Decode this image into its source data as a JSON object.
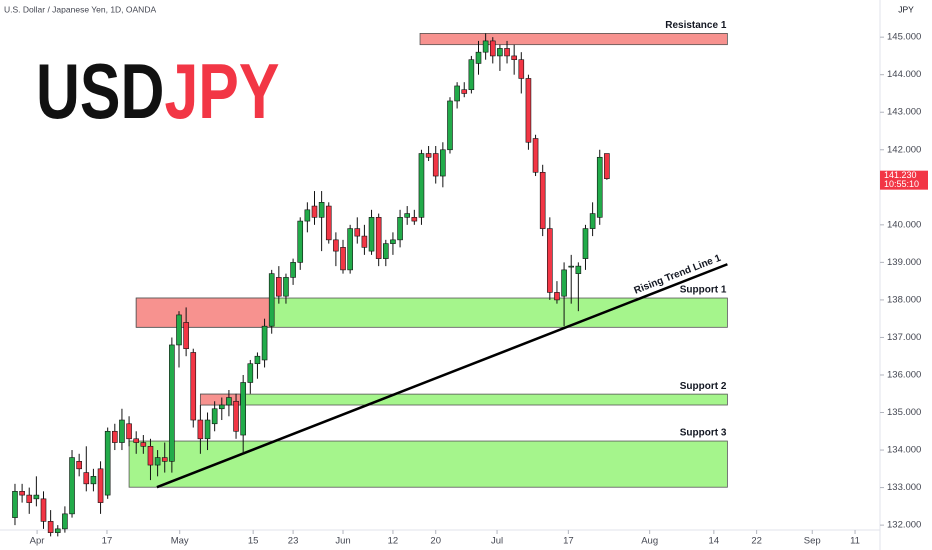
{
  "chart_data": {
    "type": "candlestick",
    "title": "U.S. Dollar / Japanese Yen, 1D, OANDA",
    "logo": [
      "USD",
      "JPY"
    ],
    "currency": "JPY",
    "up_color": "#22ab4a",
    "down_color": "#f23645",
    "ylim": [
      131.87,
      145.99
    ],
    "xlim": [
      -2.1,
      121.3
    ],
    "yticks": [
      {
        "value": 145,
        "label": "145.000"
      },
      {
        "value": 144,
        "label": "144.000"
      },
      {
        "value": 143,
        "label": "143.000"
      },
      {
        "value": 142,
        "label": "142.000"
      },
      {
        "value": 140,
        "label": "140.000"
      },
      {
        "value": 139,
        "label": "139.000"
      },
      {
        "value": 138,
        "label": "138.000"
      },
      {
        "value": 137,
        "label": "137.000"
      },
      {
        "value": 136,
        "label": "136.000"
      },
      {
        "value": 135,
        "label": "135.000"
      },
      {
        "value": 134,
        "label": "134.000"
      },
      {
        "value": 133,
        "label": "133.000"
      },
      {
        "value": 132,
        "label": "132.000"
      }
    ],
    "xticks": [
      {
        "value": 3.1,
        "label": "Apr"
      },
      {
        "value": 12.9,
        "label": "17"
      },
      {
        "value": 23.1,
        "label": "May"
      },
      {
        "value": 33.4,
        "label": "15"
      },
      {
        "value": 39,
        "label": "23"
      },
      {
        "value": 46,
        "label": "Jun"
      },
      {
        "value": 53,
        "label": "12"
      },
      {
        "value": 59,
        "label": "20"
      },
      {
        "value": 67.6,
        "label": "Jul"
      },
      {
        "value": 77.6,
        "label": "17"
      },
      {
        "value": 89,
        "label": "Aug"
      },
      {
        "value": 98,
        "label": "14"
      },
      {
        "value": 104,
        "label": "22"
      },
      {
        "value": 111.8,
        "label": "Sep"
      },
      {
        "value": 117.8,
        "label": "11"
      }
    ],
    "ohlc": [
      [
        132.2,
        133.1,
        132.0,
        132.9
      ],
      [
        132.9,
        133.1,
        132.6,
        132.8
      ],
      [
        132.8,
        133.0,
        132.3,
        132.6
      ],
      [
        132.7,
        133.3,
        132.5,
        132.8
      ],
      [
        132.7,
        132.9,
        131.9,
        132.1
      ],
      [
        132.1,
        132.4,
        131.7,
        131.8
      ],
      [
        131.8,
        132.0,
        131.7,
        131.9
      ],
      [
        131.9,
        132.5,
        131.8,
        132.3
      ],
      [
        132.3,
        134.0,
        132.2,
        133.8
      ],
      [
        133.7,
        133.9,
        133.3,
        133.5
      ],
      [
        133.4,
        134.1,
        132.9,
        133.1
      ],
      [
        133.1,
        133.5,
        132.9,
        133.3
      ],
      [
        133.5,
        133.7,
        132.3,
        132.6
      ],
      [
        132.8,
        134.6,
        132.7,
        134.5
      ],
      [
        134.5,
        134.7,
        134.0,
        134.2
      ],
      [
        134.2,
        135.1,
        134.0,
        134.8
      ],
      [
        134.7,
        134.9,
        134.1,
        134.3
      ],
      [
        134.3,
        134.5,
        133.9,
        134.2
      ],
      [
        134.2,
        134.4,
        133.9,
        134.1
      ],
      [
        134.1,
        134.3,
        133.2,
        133.6
      ],
      [
        133.6,
        134.0,
        133.3,
        133.8
      ],
      [
        133.8,
        134.2,
        133.4,
        133.7
      ],
      [
        133.7,
        137.0,
        133.4,
        136.8
      ],
      [
        136.8,
        137.7,
        136.2,
        137.6
      ],
      [
        137.4,
        137.8,
        136.5,
        136.7
      ],
      [
        136.6,
        136.7,
        134.6,
        134.8
      ],
      [
        134.8,
        135.2,
        133.9,
        134.3
      ],
      [
        134.3,
        135.0,
        134.0,
        134.8
      ],
      [
        134.7,
        135.3,
        134.5,
        135.1
      ],
      [
        135.1,
        135.4,
        134.8,
        135.2
      ],
      [
        135.2,
        135.6,
        134.9,
        135.4
      ],
      [
        135.3,
        135.5,
        134.3,
        134.5
      ],
      [
        134.4,
        136.0,
        133.9,
        135.8
      ],
      [
        135.8,
        136.4,
        135.5,
        136.3
      ],
      [
        136.3,
        136.6,
        135.9,
        136.5
      ],
      [
        136.4,
        137.5,
        136.2,
        137.3
      ],
      [
        137.3,
        138.8,
        137.1,
        138.7
      ],
      [
        138.6,
        138.9,
        137.9,
        138.1
      ],
      [
        138.1,
        138.7,
        137.9,
        138.6
      ],
      [
        138.6,
        139.1,
        138.4,
        139.0
      ],
      [
        139.0,
        140.2,
        138.8,
        140.1
      ],
      [
        140.1,
        140.6,
        139.8,
        140.4
      ],
      [
        140.5,
        140.9,
        140.0,
        140.2
      ],
      [
        140.2,
        140.9,
        139.3,
        140.6
      ],
      [
        140.5,
        140.6,
        139.5,
        139.6
      ],
      [
        139.6,
        139.8,
        138.9,
        139.3
      ],
      [
        139.4,
        139.6,
        138.7,
        138.8
      ],
      [
        138.8,
        140.0,
        138.7,
        139.9
      ],
      [
        139.9,
        140.2,
        139.5,
        139.7
      ],
      [
        139.7,
        140.0,
        139.2,
        139.4
      ],
      [
        139.3,
        140.4,
        139.2,
        140.2
      ],
      [
        140.2,
        140.3,
        138.9,
        139.1
      ],
      [
        139.1,
        139.6,
        138.9,
        139.5
      ],
      [
        139.5,
        139.8,
        139.2,
        139.6
      ],
      [
        139.6,
        140.4,
        139.4,
        140.2
      ],
      [
        140.2,
        140.5,
        140.0,
        140.3
      ],
      [
        140.2,
        140.4,
        140.0,
        140.1
      ],
      [
        140.2,
        142.0,
        140.0,
        141.9
      ],
      [
        141.9,
        142.1,
        141.7,
        141.8
      ],
      [
        141.9,
        142.1,
        141.1,
        141.3
      ],
      [
        141.3,
        142.2,
        141.0,
        142.0
      ],
      [
        142.0,
        143.4,
        141.9,
        143.3
      ],
      [
        143.3,
        143.8,
        143.1,
        143.7
      ],
      [
        143.6,
        143.8,
        143.4,
        143.5
      ],
      [
        143.6,
        144.5,
        143.5,
        144.4
      ],
      [
        144.3,
        144.9,
        144.0,
        144.6
      ],
      [
        144.6,
        145.1,
        144.4,
        144.9
      ],
      [
        144.9,
        145.0,
        144.3,
        144.5
      ],
      [
        144.5,
        144.8,
        144.1,
        144.7
      ],
      [
        144.7,
        144.9,
        144.3,
        144.5
      ],
      [
        144.5,
        144.8,
        144.0,
        144.4
      ],
      [
        144.4,
        144.6,
        143.5,
        143.9
      ],
      [
        143.9,
        144.0,
        142.0,
        142.2
      ],
      [
        142.3,
        142.4,
        141.3,
        141.4
      ],
      [
        141.4,
        141.6,
        139.7,
        139.9
      ],
      [
        139.9,
        140.2,
        138.0,
        138.2
      ],
      [
        138.2,
        138.5,
        137.9,
        138.0
      ],
      [
        138.1,
        139.0,
        137.3,
        138.8
      ],
      [
        138.9,
        139.2,
        137.9,
        138.9
      ],
      [
        138.7,
        139.0,
        137.7,
        138.9
      ],
      [
        139.1,
        140.0,
        138.8,
        139.9
      ],
      [
        139.9,
        140.6,
        139.7,
        140.3
      ],
      [
        140.2,
        142.0,
        140.0,
        141.8
      ],
      [
        141.9,
        141.9,
        141.2,
        141.23
      ]
    ],
    "zones": [
      {
        "label": "Resistance 1",
        "x": [
          56.8,
          99.9
        ],
        "y": [
          144.8,
          145.1
        ],
        "color": "#f7928f"
      },
      {
        "label": "Support 1",
        "x": [
          17,
          99.9
        ],
        "y": [
          137.27,
          138.05
        ],
        "color": "#a5f58c"
      },
      {
        "x": [
          17,
          35.8
        ],
        "y": [
          137.27,
          138.05
        ],
        "color": "#f7928f"
      },
      {
        "label": "Support 2",
        "x": [
          26,
          99.9
        ],
        "y": [
          135.2,
          135.49
        ],
        "color": "#a5f58c"
      },
      {
        "x": [
          26,
          31.6
        ],
        "y": [
          135.2,
          135.49
        ],
        "color": "#f7928f"
      },
      {
        "label": "Support 3",
        "x": [
          16,
          99.9
        ],
        "y": [
          133.01,
          134.24
        ],
        "color": "#a5f58c"
      }
    ],
    "trend_line": {
      "label": "Rising Trend Line 1",
      "x": [
        19.9,
        99.9
      ],
      "y": [
        133.01,
        138.95
      ]
    },
    "last_price": {
      "value": 141.23,
      "label": "141.230"
    },
    "countdown": "10:55:10"
  }
}
